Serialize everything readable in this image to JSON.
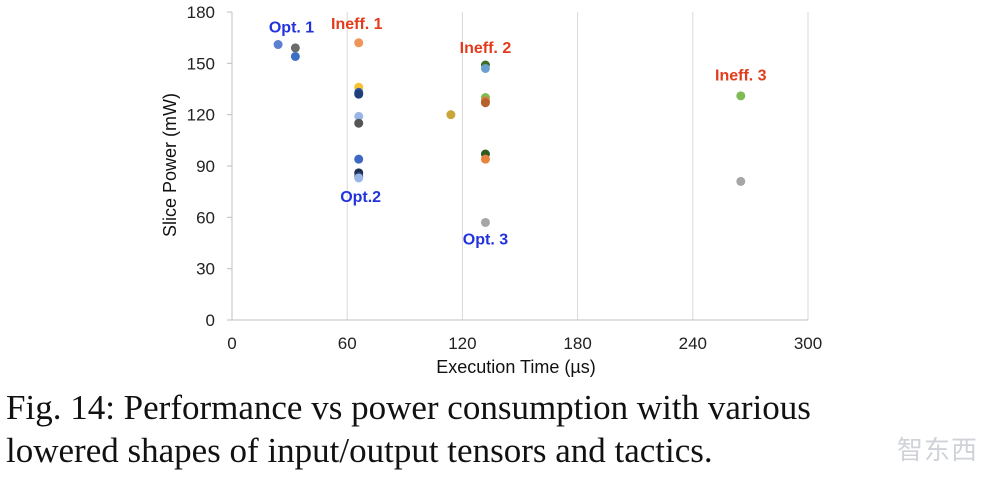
{
  "chart_data": {
    "type": "scatter",
    "title": "",
    "xlabel": "Execution Time (µs)",
    "ylabel": "Slice Power (mW)",
    "xlim": [
      0,
      300
    ],
    "ylim": [
      0,
      180
    ],
    "xticks": [
      0,
      60,
      120,
      180,
      240,
      300
    ],
    "yticks": [
      0,
      30,
      60,
      90,
      120,
      150,
      180
    ],
    "grid": "vertical",
    "points": [
      {
        "x": 24,
        "y": 161,
        "color": "#5b7fd1"
      },
      {
        "x": 33,
        "y": 159,
        "color": "#6b6b6b"
      },
      {
        "x": 33,
        "y": 154,
        "color": "#3a6fc4"
      },
      {
        "x": 66,
        "y": 162,
        "color": "#f0955a"
      },
      {
        "x": 66,
        "y": 136,
        "color": "#f6c233"
      },
      {
        "x": 66,
        "y": 133,
        "color": "#2f57a8"
      },
      {
        "x": 66,
        "y": 132,
        "color": "#1f3f7a"
      },
      {
        "x": 66,
        "y": 119,
        "color": "#9ab6e6"
      },
      {
        "x": 66,
        "y": 115,
        "color": "#555555"
      },
      {
        "x": 66,
        "y": 94,
        "color": "#3e68c0"
      },
      {
        "x": 66,
        "y": 86,
        "color": "#1d2e55"
      },
      {
        "x": 66,
        "y": 84,
        "color": "#2a3e70"
      },
      {
        "x": 66,
        "y": 83,
        "color": "#9ab6e6"
      },
      {
        "x": 114,
        "y": 120,
        "color": "#c8a63a"
      },
      {
        "x": 132,
        "y": 149,
        "color": "#3d6b2a"
      },
      {
        "x": 132,
        "y": 147,
        "color": "#6a9fcf"
      },
      {
        "x": 132,
        "y": 130,
        "color": "#7fbb55"
      },
      {
        "x": 132,
        "y": 128,
        "color": "#e3773a"
      },
      {
        "x": 132,
        "y": 127,
        "color": "#b5622c"
      },
      {
        "x": 132,
        "y": 97,
        "color": "#2f5a22"
      },
      {
        "x": 132,
        "y": 94,
        "color": "#e8823c"
      },
      {
        "x": 132,
        "y": 57,
        "color": "#a6a6a6"
      },
      {
        "x": 265,
        "y": 131,
        "color": "#7fbb55"
      },
      {
        "x": 265,
        "y": 81,
        "color": "#a6a6a6"
      }
    ],
    "annotations": [
      {
        "text": "Opt. 1",
        "x": 31,
        "y": 168,
        "color": "#2233dd"
      },
      {
        "text": "Ineff. 1",
        "x": 65,
        "y": 170,
        "color": "#e33c1c"
      },
      {
        "text": "Ineff. 2",
        "x": 132,
        "y": 156,
        "color": "#e33c1c"
      },
      {
        "text": "Ineff. 3",
        "x": 265,
        "y": 140,
        "color": "#e33c1c"
      },
      {
        "text": "Opt.2",
        "x": 67,
        "y": 69,
        "color": "#2233dd"
      },
      {
        "text": "Opt. 3",
        "x": 132,
        "y": 44,
        "color": "#2233dd"
      }
    ]
  },
  "caption": {
    "line1": "Fig. 14: Performance vs power consumption with various",
    "line2": "lowered shapes of input/output tensors and tactics."
  },
  "watermark": "智东西"
}
